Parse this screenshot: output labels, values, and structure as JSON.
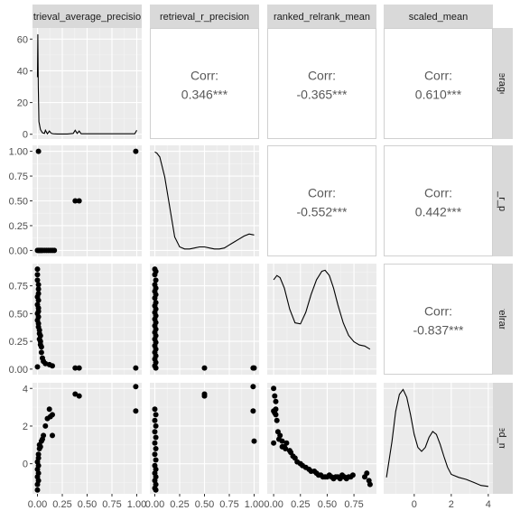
{
  "chart_data": {
    "type": "pairs",
    "variables": [
      "retrieval_average_precision",
      "retrieval_r_precision",
      "ranked_relrank_mean",
      "scaled_mean"
    ],
    "column_strips": [
      "trieval_average_precisio",
      "retrieval_r_precision",
      "ranked_relrank_mean",
      "scaled_mean"
    ],
    "row_strips": [
      "trieval_average_precisio",
      "retrieval_r_precision",
      "ranked_relrank_mean",
      "scaled_mean"
    ],
    "x_ranges": [
      [
        -0.05,
        1.05
      ],
      [
        -0.05,
        1.05
      ],
      [
        -0.06,
        0.96
      ],
      [
        -1.65,
        4.25
      ]
    ],
    "y_ranges": [
      [
        -3,
        67
      ],
      [
        -0.06,
        1.06
      ],
      [
        -0.05,
        0.95
      ],
      [
        -1.6,
        4.3
      ]
    ],
    "x_ticks": [
      [
        0.0,
        0.25,
        0.5,
        0.75,
        1.0
      ],
      [
        0.0,
        0.25,
        0.5,
        0.75,
        1.0
      ],
      [
        0.0,
        0.25,
        0.5,
        0.75
      ],
      [
        0,
        2,
        4
      ]
    ],
    "x_tick_labels": [
      [
        "0.00",
        "0.25",
        "0.50",
        "0.75",
        "1.00"
      ],
      [
        "0.00",
        "0.25",
        "0.50",
        "0.75",
        "1.00"
      ],
      [
        "0.00",
        "0.25",
        "0.50",
        "0.75"
      ],
      [
        "0",
        "2",
        "4"
      ]
    ],
    "y_ticks": [
      [
        0,
        20,
        40,
        60
      ],
      [
        0.0,
        0.25,
        0.5,
        0.75,
        1.0
      ],
      [
        0.0,
        0.25,
        0.5,
        0.75
      ],
      [
        0,
        2,
        4
      ]
    ],
    "y_tick_labels": [
      [
        "0",
        "20",
        "40",
        "60"
      ],
      [
        "0.00",
        "0.25",
        "0.50",
        "0.75",
        "1.00"
      ],
      [
        "0.00",
        "0.25",
        "0.50",
        "0.75"
      ],
      [
        "0",
        "2",
        "4"
      ]
    ],
    "correlations": [
      {
        "row": 0,
        "col": 1,
        "label": "Corr:",
        "value": "0.346***"
      },
      {
        "row": 0,
        "col": 2,
        "label": "Corr:",
        "value": "-0.365***"
      },
      {
        "row": 0,
        "col": 3,
        "label": "Corr:",
        "value": "0.610***"
      },
      {
        "row": 1,
        "col": 2,
        "label": "Corr:",
        "value": "-0.552***"
      },
      {
        "row": 1,
        "col": 3,
        "label": "Corr:",
        "value": "0.442***"
      },
      {
        "row": 2,
        "col": 3,
        "label": "Corr:",
        "value": "-0.837***"
      }
    ],
    "densities": [
      {
        "index": 0,
        "x": [
          0.0,
          0.004,
          0.008,
          0.015,
          0.03,
          0.05,
          0.07,
          0.08,
          0.1,
          0.12,
          0.14,
          0.16,
          0.2,
          0.3,
          0.36,
          0.38,
          0.4,
          0.42,
          0.44,
          0.5,
          0.7,
          0.9,
          0.98,
          1.0
        ],
        "y": [
          36,
          63,
          30,
          8,
          3,
          1,
          0.5,
          2.5,
          0.3,
          2,
          0.5,
          0.3,
          0.2,
          0.2,
          0.5,
          2.5,
          0.5,
          2,
          0.3,
          0.3,
          0.3,
          0.3,
          0.3,
          2.5
        ]
      },
      {
        "index": 1,
        "x": [
          0.0,
          0.02,
          0.05,
          0.1,
          0.15,
          0.2,
          0.25,
          0.3,
          0.35,
          0.4,
          0.45,
          0.5,
          0.55,
          0.6,
          0.65,
          0.7,
          0.75,
          0.8,
          0.85,
          0.9,
          0.95,
          1.0
        ],
        "y": [
          1.0,
          0.99,
          0.95,
          0.75,
          0.45,
          0.15,
          0.05,
          0.03,
          0.03,
          0.04,
          0.05,
          0.05,
          0.04,
          0.03,
          0.03,
          0.04,
          0.07,
          0.1,
          0.13,
          0.16,
          0.18,
          0.17
        ]
      },
      {
        "index": 2,
        "x": [
          0.0,
          0.03,
          0.06,
          0.1,
          0.15,
          0.2,
          0.25,
          0.3,
          0.35,
          0.4,
          0.45,
          0.48,
          0.52,
          0.56,
          0.6,
          0.65,
          0.7,
          0.75,
          0.8,
          0.85,
          0.9
        ],
        "y": [
          0.86,
          0.9,
          0.88,
          0.78,
          0.58,
          0.45,
          0.44,
          0.55,
          0.72,
          0.86,
          0.94,
          0.95,
          0.9,
          0.78,
          0.62,
          0.45,
          0.33,
          0.27,
          0.24,
          0.23,
          0.2
        ]
      },
      {
        "index": 3,
        "x": [
          -1.5,
          -1.2,
          -1.0,
          -0.8,
          -0.6,
          -0.4,
          -0.2,
          0.0,
          0.2,
          0.4,
          0.6,
          0.8,
          1.0,
          1.2,
          1.4,
          1.6,
          1.8,
          2.0,
          2.4,
          2.8,
          3.2,
          3.6,
          4.0
        ],
        "y": [
          0.12,
          0.48,
          0.78,
          0.95,
          1.0,
          0.92,
          0.75,
          0.55,
          0.42,
          0.38,
          0.42,
          0.52,
          0.58,
          0.55,
          0.45,
          0.33,
          0.22,
          0.15,
          0.12,
          0.1,
          0.07,
          0.04,
          0.03
        ]
      }
    ],
    "scatter": [
      {
        "row": 1,
        "col": 0,
        "points": [
          [
            0.01,
            1.0
          ],
          [
            0.99,
            1.0
          ],
          [
            0.38,
            0.5
          ],
          [
            0.42,
            0.5
          ],
          [
            0.0,
            0.0
          ],
          [
            0.01,
            0.0
          ],
          [
            0.02,
            0.0
          ],
          [
            0.03,
            0.0
          ],
          [
            0.04,
            0.0
          ],
          [
            0.05,
            0.0
          ],
          [
            0.07,
            0.0
          ],
          [
            0.09,
            0.0
          ],
          [
            0.11,
            0.0
          ],
          [
            0.13,
            0.0
          ],
          [
            0.15,
            0.0
          ],
          [
            0.17,
            0.0
          ]
        ]
      },
      {
        "row": 2,
        "col": 0,
        "points": [
          [
            0.0,
            0.9
          ],
          [
            0.0,
            0.85
          ],
          [
            0.0,
            0.8
          ],
          [
            0.01,
            0.76
          ],
          [
            0.01,
            0.72
          ],
          [
            0.01,
            0.68
          ],
          [
            0.0,
            0.65
          ],
          [
            0.01,
            0.62
          ],
          [
            0.0,
            0.58
          ],
          [
            0.01,
            0.55
          ],
          [
            0.01,
            0.52
          ],
          [
            0.0,
            0.5
          ],
          [
            0.01,
            0.47
          ],
          [
            0.0,
            0.44
          ],
          [
            0.01,
            0.41
          ],
          [
            0.01,
            0.38
          ],
          [
            0.02,
            0.35
          ],
          [
            0.02,
            0.32
          ],
          [
            0.03,
            0.3
          ],
          [
            0.02,
            0.27
          ],
          [
            0.03,
            0.25
          ],
          [
            0.03,
            0.22
          ],
          [
            0.04,
            0.2
          ],
          [
            0.04,
            0.15
          ],
          [
            0.05,
            0.1
          ],
          [
            0.06,
            0.07
          ],
          [
            0.08,
            0.05
          ],
          [
            0.12,
            0.04
          ],
          [
            0.15,
            0.03
          ],
          [
            0.38,
            0.01
          ],
          [
            0.42,
            0.01
          ],
          [
            0.99,
            0.01
          ],
          [
            0.0,
            0.02
          ]
        ]
      },
      {
        "row": 2,
        "col": 1,
        "points": [
          [
            0.0,
            0.9
          ],
          [
            0.01,
            0.88
          ],
          [
            0.0,
            0.85
          ],
          [
            0.01,
            0.8
          ],
          [
            0.0,
            0.76
          ],
          [
            0.01,
            0.73
          ],
          [
            0.0,
            0.7
          ],
          [
            0.01,
            0.67
          ],
          [
            0.0,
            0.64
          ],
          [
            0.01,
            0.6
          ],
          [
            0.0,
            0.57
          ],
          [
            0.01,
            0.54
          ],
          [
            0.0,
            0.51
          ],
          [
            0.01,
            0.48
          ],
          [
            0.0,
            0.45
          ],
          [
            0.01,
            0.42
          ],
          [
            0.0,
            0.39
          ],
          [
            0.01,
            0.36
          ],
          [
            0.0,
            0.33
          ],
          [
            0.01,
            0.3
          ],
          [
            0.0,
            0.27
          ],
          [
            0.01,
            0.24
          ],
          [
            0.0,
            0.21
          ],
          [
            0.01,
            0.18
          ],
          [
            0.0,
            0.15
          ],
          [
            0.01,
            0.12
          ],
          [
            0.0,
            0.09
          ],
          [
            0.01,
            0.06
          ],
          [
            0.0,
            0.03
          ],
          [
            0.01,
            0.01
          ],
          [
            0.5,
            0.01
          ],
          [
            0.99,
            0.01
          ],
          [
            1.0,
            0.01
          ]
        ]
      },
      {
        "row": 3,
        "col": 0,
        "points": [
          [
            0.0,
            -1.4
          ],
          [
            0.0,
            -1.1
          ],
          [
            0.01,
            -0.9
          ],
          [
            0.0,
            -0.7
          ],
          [
            0.01,
            -0.5
          ],
          [
            0.0,
            -0.3
          ],
          [
            0.01,
            -0.1
          ],
          [
            0.0,
            0.1
          ],
          [
            0.01,
            0.3
          ],
          [
            0.01,
            0.5
          ],
          [
            0.02,
            0.8
          ],
          [
            0.02,
            1.0
          ],
          [
            0.03,
            0.9
          ],
          [
            0.04,
            1.2
          ],
          [
            0.05,
            1.3
          ],
          [
            0.06,
            1.5
          ],
          [
            0.08,
            2.0
          ],
          [
            0.1,
            2.4
          ],
          [
            0.12,
            2.9
          ],
          [
            0.13,
            2.5
          ],
          [
            0.15,
            2.6
          ],
          [
            0.15,
            1.5
          ],
          [
            0.38,
            3.7
          ],
          [
            0.42,
            3.6
          ],
          [
            0.99,
            4.1
          ],
          [
            0.99,
            2.8
          ]
        ]
      },
      {
        "row": 3,
        "col": 1,
        "points": [
          [
            0.0,
            2.9
          ],
          [
            0.01,
            2.6
          ],
          [
            0.0,
            2.3
          ],
          [
            0.01,
            2.0
          ],
          [
            0.0,
            1.7
          ],
          [
            0.01,
            1.4
          ],
          [
            0.0,
            1.1
          ],
          [
            0.01,
            0.8
          ],
          [
            0.0,
            0.5
          ],
          [
            0.01,
            0.2
          ],
          [
            0.0,
            -0.1
          ],
          [
            0.01,
            -0.3
          ],
          [
            0.0,
            -0.5
          ],
          [
            0.01,
            -0.7
          ],
          [
            0.0,
            -0.9
          ],
          [
            0.01,
            -1.1
          ],
          [
            0.0,
            -1.3
          ],
          [
            0.01,
            -1.4
          ],
          [
            0.5,
            3.7
          ],
          [
            0.5,
            3.6
          ],
          [
            0.99,
            4.1
          ],
          [
            0.99,
            2.8
          ],
          [
            1.0,
            1.2
          ]
        ]
      },
      {
        "row": 3,
        "col": 2,
        "points": [
          [
            0.0,
            4.0
          ],
          [
            0.01,
            3.6
          ],
          [
            0.02,
            3.3
          ],
          [
            0.0,
            2.8
          ],
          [
            0.01,
            2.7
          ],
          [
            0.02,
            2.6
          ],
          [
            0.03,
            2.3
          ],
          [
            0.04,
            1.7
          ],
          [
            0.06,
            1.5
          ],
          [
            0.08,
            1.2
          ],
          [
            0.1,
            0.9
          ],
          [
            0.12,
            1.1
          ],
          [
            0.15,
            0.7
          ],
          [
            0.18,
            0.4
          ],
          [
            0.2,
            0.3
          ],
          [
            0.22,
            0.1
          ],
          [
            0.25,
            0.0
          ],
          [
            0.27,
            -0.1
          ],
          [
            0.3,
            -0.2
          ],
          [
            0.33,
            -0.3
          ],
          [
            0.35,
            -0.4
          ],
          [
            0.38,
            -0.4
          ],
          [
            0.4,
            -0.5
          ],
          [
            0.42,
            -0.6
          ],
          [
            0.44,
            -0.6
          ],
          [
            0.46,
            -0.7
          ],
          [
            0.48,
            -0.7
          ],
          [
            0.5,
            -0.7
          ],
          [
            0.52,
            -0.6
          ],
          [
            0.54,
            -0.7
          ],
          [
            0.56,
            -0.8
          ],
          [
            0.58,
            -0.7
          ],
          [
            0.6,
            -0.7
          ],
          [
            0.62,
            -0.8
          ],
          [
            0.64,
            -0.6
          ],
          [
            0.66,
            -0.7
          ],
          [
            0.68,
            -0.8
          ],
          [
            0.7,
            -0.7
          ],
          [
            0.72,
            -0.7
          ],
          [
            0.74,
            -0.6
          ],
          [
            0.85,
            -0.7
          ],
          [
            0.87,
            -0.5
          ],
          [
            0.89,
            -0.9
          ],
          [
            0.9,
            -1.1
          ],
          [
            0.0,
            1.1
          ],
          [
            0.02,
            2.9
          ],
          [
            0.05,
            1.3
          ],
          [
            0.16,
            0.6
          ],
          [
            0.08,
            0.9
          ],
          [
            0.11,
            0.8
          ]
        ]
      }
    ]
  }
}
